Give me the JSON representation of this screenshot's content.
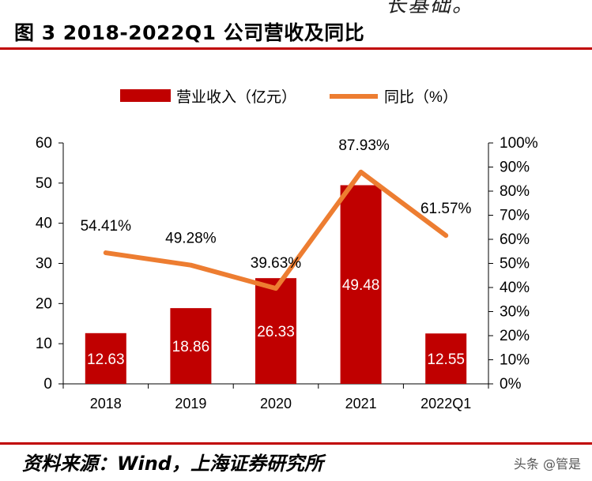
{
  "header": {
    "fragment": "长基础。",
    "figure_title": "图 3 2018-2022Q1 公司营收及同比"
  },
  "footer": {
    "source": "资料来源：Wind，上海证券研究所",
    "watermark": "头条 @管是"
  },
  "colors": {
    "bar": "#c00000",
    "line": "#ed7d31",
    "rule": "#c00000"
  },
  "chart_data": {
    "type": "bar",
    "title": "2018-2022Q1 公司营收及同比",
    "categories": [
      "2018",
      "2019",
      "2020",
      "2021",
      "2022Q1"
    ],
    "series": [
      {
        "name": "营业收入（亿元）",
        "type": "bar",
        "axis": "left",
        "values": [
          12.63,
          18.86,
          26.33,
          49.48,
          12.55
        ],
        "labels": [
          "12.63",
          "18.86",
          "26.33",
          "49.48",
          "12.55"
        ]
      },
      {
        "name": "同比（%）",
        "type": "line",
        "axis": "right",
        "values": [
          54.41,
          49.28,
          39.63,
          87.93,
          61.57
        ],
        "labels": [
          "54.41%",
          "49.28%",
          "39.63%",
          "87.93%",
          "61.57%"
        ]
      }
    ],
    "y_left": {
      "min": 0,
      "max": 60,
      "ticks": [
        "0",
        "10",
        "20",
        "30",
        "40",
        "50",
        "60"
      ]
    },
    "y_right": {
      "min": 0,
      "max": 100,
      "ticks": [
        "0%",
        "10%",
        "20%",
        "30%",
        "40%",
        "50%",
        "60%",
        "70%",
        "80%",
        "90%",
        "100%"
      ]
    },
    "legend_position": "top-center",
    "grid": false
  }
}
